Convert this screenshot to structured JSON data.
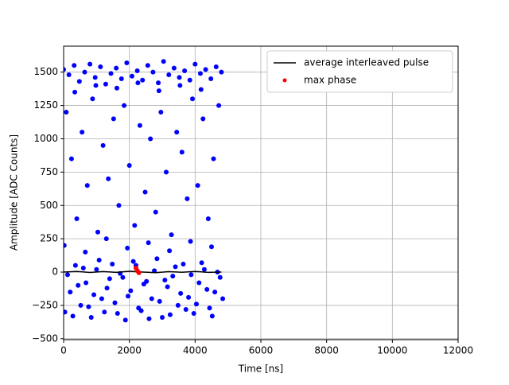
{
  "chart_data": {
    "type": "scatter",
    "xlabel": "Time [ns]",
    "ylabel": "Amplitude [ADC Counts]",
    "xlim": [
      0,
      12000
    ],
    "ylim": [
      -507,
      1695
    ],
    "xticks": [
      0,
      2000,
      4000,
      6000,
      8000,
      10000,
      12000
    ],
    "yticks": [
      {
        "value": -500,
        "label": "−500"
      },
      {
        "value": -250,
        "label": "−250"
      },
      0,
      250,
      500,
      750,
      1000,
      1250,
      1500
    ],
    "grid": true,
    "legend": "upper right",
    "series": [
      {
        "kind": "scatter",
        "color": "#0000ff",
        "x": [
          0,
          160,
          320,
          480,
          640,
          800,
          960,
          1120,
          1280,
          1440,
          1600,
          1760,
          1920,
          2080,
          2240,
          2400,
          2560,
          2720,
          2880,
          3040,
          3200,
          3360,
          3520,
          3680,
          3840,
          4000,
          4160,
          4320,
          4480,
          4640,
          4800,
          80,
          240,
          400,
          560,
          720,
          880,
          1040,
          1200,
          1360,
          1520,
          1680,
          1840,
          2000,
          2160,
          2320,
          2480,
          2640,
          2800,
          2960,
          3120,
          3280,
          3440,
          3600,
          3760,
          3920,
          4080,
          4240,
          4400,
          4560,
          4720,
          40,
          200,
          360,
          520,
          680,
          840,
          1000,
          1160,
          1320,
          1480,
          1640,
          1800,
          1960,
          2120,
          2280,
          2440,
          2600,
          2760,
          2920,
          3080,
          3240,
          3400,
          3560,
          3720,
          3880,
          4040,
          4200,
          4360,
          4520,
          4680,
          4840,
          120,
          280,
          440,
          600,
          760,
          920,
          1080,
          1240,
          1400,
          1560,
          1720,
          1880,
          2040,
          2200,
          2360,
          2520,
          2680,
          2840,
          3000,
          3160,
          3320,
          3480,
          3640,
          3800,
          3960,
          4120,
          4280,
          4440,
          4600,
          4760,
          20,
          340,
          660,
          980,
          1300,
          1620,
          1940,
          2260,
          2580,
          2900,
          3220,
          3540,
          3860,
          4180,
          4500
        ],
        "values": [
          1520,
          1480,
          1550,
          1430,
          1500,
          1560,
          1460,
          1540,
          1410,
          1490,
          1530,
          1450,
          1570,
          1470,
          1510,
          1440,
          1550,
          1500,
          1420,
          1580,
          1480,
          1530,
          1460,
          1510,
          1440,
          1560,
          1490,
          1520,
          1450,
          1540,
          1500,
          1200,
          850,
          400,
          1050,
          650,
          1300,
          300,
          950,
          700,
          1150,
          500,
          1250,
          800,
          350,
          1100,
          600,
          1000,
          450,
          1200,
          750,
          280,
          1050,
          900,
          550,
          1300,
          650,
          1150,
          400,
          850,
          1250,
          -300,
          -150,
          50,
          -250,
          -80,
          -340,
          20,
          -200,
          -120,
          60,
          -310,
          -40,
          -180,
          80,
          -270,
          -90,
          -350,
          10,
          -220,
          -60,
          -320,
          40,
          -160,
          -280,
          -20,
          -240,
          70,
          -130,
          -330,
          0,
          -200,
          -20,
          -330,
          -100,
          30,
          -260,
          -170,
          90,
          -300,
          -50,
          -230,
          -10,
          -360,
          -140,
          50,
          -290,
          -70,
          -200,
          100,
          -340,
          -110,
          -30,
          -250,
          60,
          -190,
          -310,
          -80,
          20,
          -270,
          -150,
          -40,
          200,
          1350,
          150,
          1400,
          250,
          1380,
          180,
          1420,
          220,
          1360,
          160,
          1400,
          230,
          1370,
          190
        ]
      },
      {
        "kind": "line",
        "name": "average interleaved pulse",
        "color": "#000000",
        "x": [
          0,
          400,
          800,
          1200,
          1600,
          2000,
          2400,
          2800,
          3200,
          3600,
          4000,
          4400,
          4800
        ],
        "values": [
          0,
          5,
          -3,
          4,
          -2,
          6,
          0,
          -4,
          3,
          -1,
          5,
          -2,
          0
        ]
      },
      {
        "kind": "scatter",
        "name": "max phase",
        "color": "#ff0000",
        "x": [
          2200,
          2240,
          2290
        ],
        "values": [
          30,
          10,
          -5
        ]
      }
    ]
  }
}
